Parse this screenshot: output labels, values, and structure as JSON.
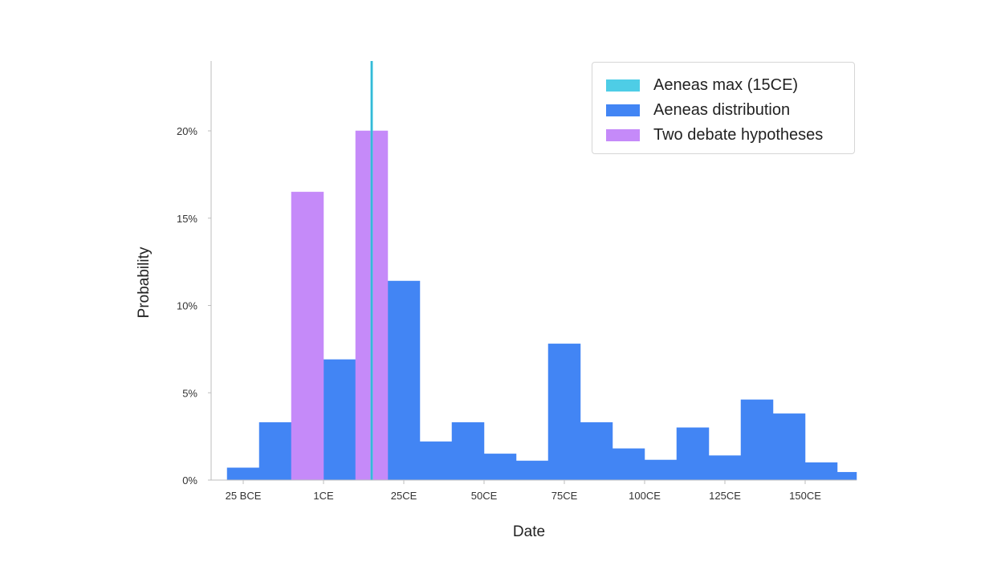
{
  "chart_data": {
    "type": "bar",
    "title": "",
    "xlabel": "Date",
    "ylabel": "Probability",
    "xlim": [
      -35,
      166
    ],
    "ylim": [
      0,
      24
    ],
    "bin_width_years": 10,
    "x_ticks": [
      {
        "value": -25,
        "label": "25 BCE"
      },
      {
        "value": 0,
        "label": "1CE"
      },
      {
        "value": 25,
        "label": "25CE"
      },
      {
        "value": 50,
        "label": "50CE"
      },
      {
        "value": 75,
        "label": "75CE"
      },
      {
        "value": 100,
        "label": "100CE"
      },
      {
        "value": 125,
        "label": "125CE"
      },
      {
        "value": 150,
        "label": "150CE"
      }
    ],
    "y_ticks": [
      {
        "value": 0,
        "label": "0%"
      },
      {
        "value": 5,
        "label": "5%"
      },
      {
        "value": 10,
        "label": "10%"
      },
      {
        "value": 15,
        "label": "15%"
      },
      {
        "value": 20,
        "label": "20%"
      }
    ],
    "grid": false,
    "legend_position": "top-right",
    "series": [
      {
        "name": "Aeneas distribution",
        "color": "#4285f4",
        "bin_starts": [
          -30,
          -20,
          0,
          20,
          30,
          40,
          50,
          60,
          70,
          80,
          90,
          100,
          110,
          120,
          130,
          140,
          150,
          160
        ],
        "values": [
          0.7,
          3.3,
          6.9,
          11.4,
          2.2,
          3.3,
          1.5,
          1.1,
          7.8,
          3.3,
          1.8,
          1.15,
          3.0,
          1.4,
          4.6,
          3.8,
          1.0,
          0.45
        ]
      },
      {
        "name": "Two debate hypotheses",
        "color": "#c58af9",
        "bin_starts": [
          -10,
          10
        ],
        "values": [
          16.5,
          20.0
        ]
      }
    ],
    "vline": {
      "name": "Aeneas max (15CE)",
      "x": 15,
      "color": "#4ecde6"
    }
  },
  "legend": [
    {
      "label": "Aeneas max (15CE)",
      "color": "#4ecde6"
    },
    {
      "label": "Aeneas distribution",
      "color": "#4285f4"
    },
    {
      "label": "Two debate hypotheses",
      "color": "#c58af9"
    }
  ]
}
